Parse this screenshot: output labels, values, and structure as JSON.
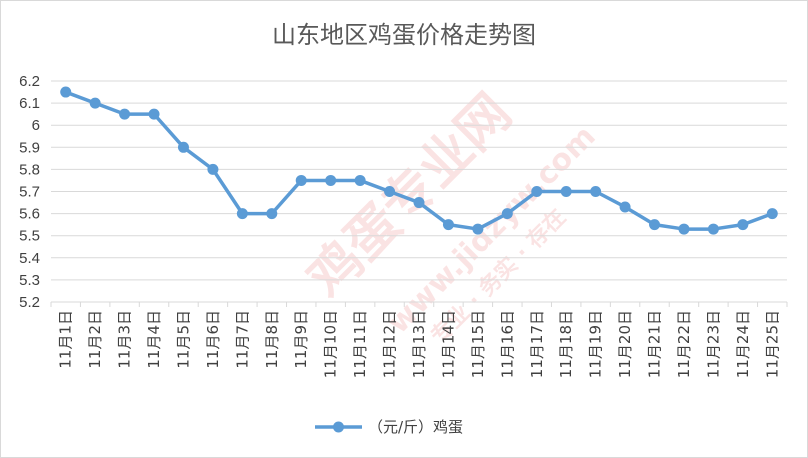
{
  "chart_data": {
    "type": "line",
    "title": "山东地区鸡蛋价格走势图",
    "xlabel": "",
    "ylabel": "",
    "categories": [
      "11月1日",
      "11月2日",
      "11月3日",
      "11月4日",
      "11月5日",
      "11月6日",
      "11月7日",
      "11月8日",
      "11月9日",
      "11月10日",
      "11月11日",
      "11月12日",
      "11月13日",
      "11月14日",
      "11月15日",
      "11月16日",
      "11月17日",
      "11月18日",
      "11月19日",
      "11月20日",
      "11月21日",
      "11月22日",
      "11月23日",
      "11月24日",
      "11月25日"
    ],
    "series": [
      {
        "name": "（元/斤）鸡蛋",
        "color": "#5b9bd5",
        "values": [
          6.15,
          6.1,
          6.05,
          6.05,
          5.9,
          5.8,
          5.6,
          5.6,
          5.75,
          5.75,
          5.75,
          5.7,
          5.65,
          5.55,
          5.53,
          5.6,
          5.7,
          5.7,
          5.7,
          5.63,
          5.55,
          5.53,
          5.53,
          5.55,
          5.6
        ]
      }
    ],
    "ylim": [
      5.2,
      6.2
    ],
    "yticks": [
      "6.2",
      "6.1",
      "6",
      "5.9",
      "5.8",
      "5.7",
      "5.6",
      "5.5",
      "5.4",
      "5.3",
      "5.2"
    ],
    "grid": true,
    "legend_position": "bottom",
    "watermark": {
      "main": "鸡蛋专业网",
      "url": "www.jidzyw.com",
      "tagline": "专业 · 务实 · 存在"
    }
  }
}
